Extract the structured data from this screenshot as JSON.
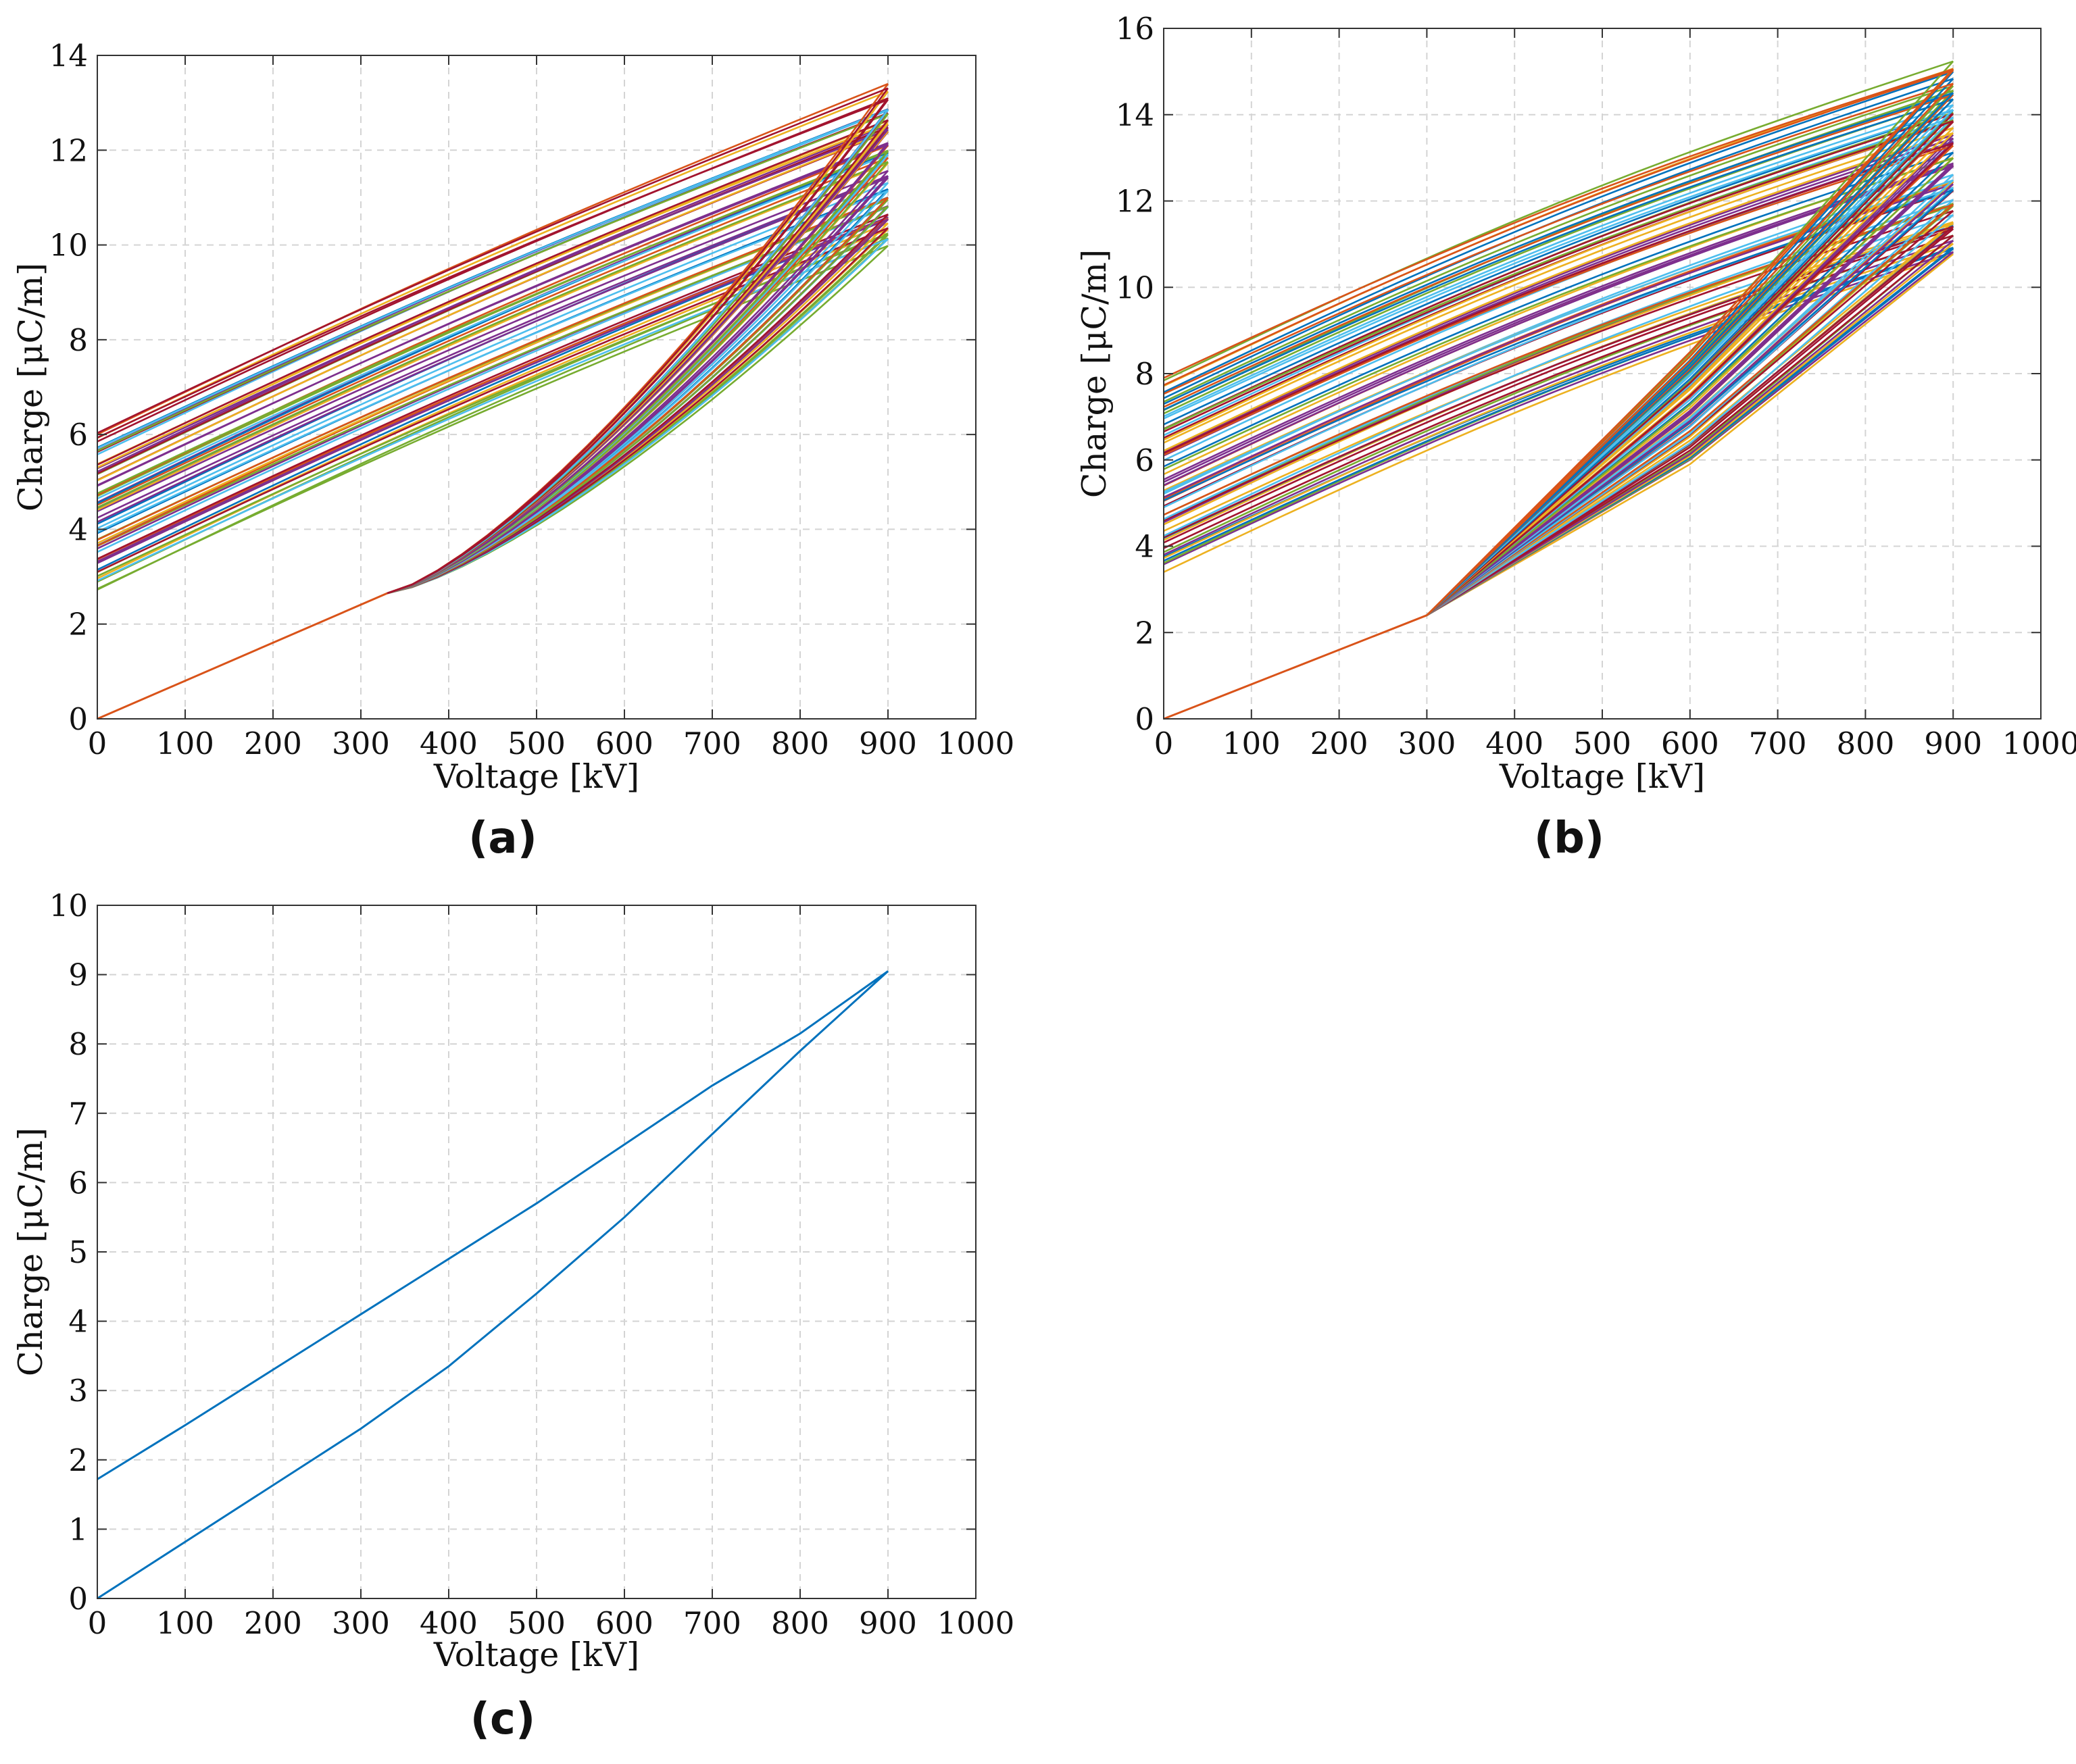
{
  "chart_data": [
    {
      "id": "a",
      "type": "line",
      "panel_label": "(a)",
      "xlabel": "Voltage [kV]",
      "ylabel": "Charge [μC/m]",
      "xlim": [
        0,
        1000
      ],
      "ylim": [
        0,
        14
      ],
      "xticks": [
        "0",
        "100",
        "200",
        "300",
        "400",
        "500",
        "600",
        "700",
        "800",
        "900",
        "1000"
      ],
      "yticks": [
        "0",
        "2",
        "4",
        "6",
        "8",
        "10",
        "12",
        "14"
      ],
      "grid": true,
      "description": "family of hysteresis loops: common initial rise 0→2.6 at 330 kV, then ~60 loops with upper branches from (0, 2.7–6.1) to (900, 10–13.3)",
      "initial_branch": {
        "x": [
          0,
          330
        ],
        "y": [
          0,
          2.65
        ],
        "color": "#D95319"
      },
      "shared_start": {
        "x": 330,
        "y": 2.65
      },
      "loop_count": 60,
      "upper_start_range": [
        2.7,
        6.1
      ],
      "top_end_range": [
        10.0,
        13.35
      ],
      "lower_branch_shape": "convex rise from (330, 2.65) to (900, top)",
      "series_colors": [
        "#0072BD",
        "#D95319",
        "#EDB120",
        "#7E2F8E",
        "#77AC30",
        "#4DBEEE",
        "#A2142F"
      ]
    },
    {
      "id": "b",
      "type": "line",
      "panel_label": "(b)",
      "xlabel": "Voltage [kV]",
      "ylabel": "Charge [μC/m]",
      "xlim": [
        0,
        1000
      ],
      "ylim": [
        0,
        16
      ],
      "xticks": [
        "0",
        "100",
        "200",
        "300",
        "400",
        "500",
        "600",
        "700",
        "800",
        "900",
        "1000"
      ],
      "yticks": [
        "0",
        "2",
        "4",
        "6",
        "8",
        "10",
        "12",
        "14",
        "16"
      ],
      "grid": true,
      "description": "family of hysteresis loops: common initial rise 0→2.4 at 300 kV, then ~70 loops with upper branches from (0, 3.4–7.9) to (900, 10.7–15.2)",
      "initial_branch": {
        "x": [
          0,
          300
        ],
        "y": [
          0,
          2.4
        ],
        "color": "#D95319"
      },
      "shared_start": {
        "x": 300,
        "y": 2.4
      },
      "loop_count": 70,
      "upper_start_range": [
        3.4,
        7.9
      ],
      "top_end_range": [
        10.7,
        15.2
      ],
      "lower_branch_shape": "steep piecewise rise from (300, 2.4) through ~600 kV to (900, top)",
      "series_colors": [
        "#0072BD",
        "#D95319",
        "#EDB120",
        "#7E2F8E",
        "#77AC30",
        "#4DBEEE",
        "#A2142F"
      ]
    },
    {
      "id": "c",
      "type": "line",
      "panel_label": "(c)",
      "xlabel": "Voltage [kV]",
      "ylabel": "Charge [μC/m]",
      "xlim": [
        0,
        1000
      ],
      "ylim": [
        0,
        10
      ],
      "xticks": [
        "0",
        "100",
        "200",
        "300",
        "400",
        "500",
        "600",
        "700",
        "800",
        "900",
        "1000"
      ],
      "yticks": [
        "0",
        "1",
        "2",
        "3",
        "4",
        "5",
        "6",
        "7",
        "8",
        "9",
        "10"
      ],
      "grid": true,
      "series": [
        {
          "name": "hysteresis loop",
          "color": "#0072BD",
          "x": [
            0,
            300,
            400,
            500,
            600,
            700,
            800,
            900,
            800,
            700,
            600,
            500,
            400,
            300,
            200,
            100,
            0
          ],
          "y": [
            0,
            2.45,
            3.35,
            4.4,
            5.5,
            6.7,
            7.9,
            9.05,
            8.15,
            7.4,
            6.55,
            5.7,
            4.9,
            4.1,
            3.3,
            2.5,
            1.72
          ]
        }
      ]
    }
  ]
}
